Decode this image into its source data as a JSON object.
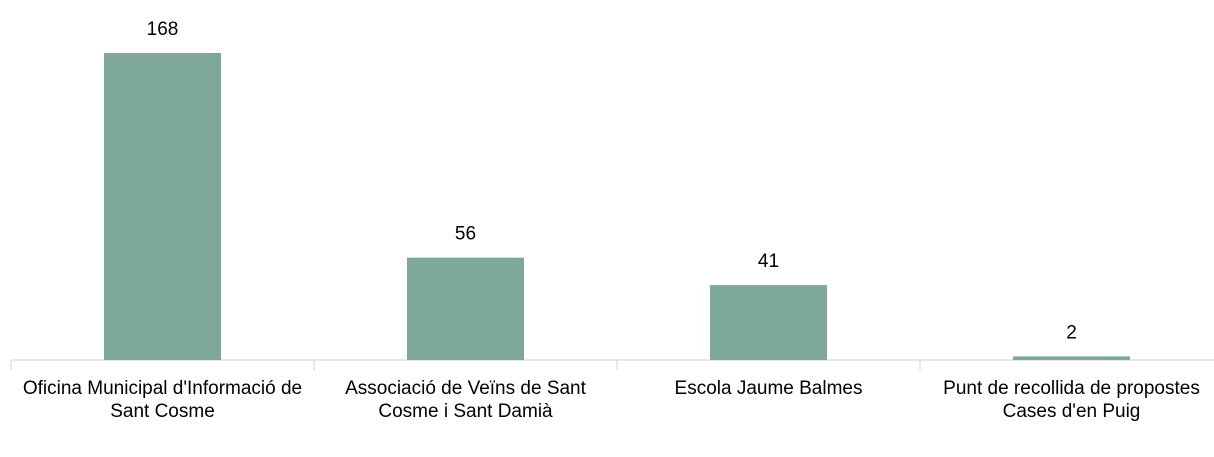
{
  "chart_data": {
    "type": "bar",
    "categories": [
      "Oficina Municipal d'Informació de Sant Cosme",
      "Associació de Veïns de Sant Cosme i Sant Damià",
      "Escola Jaume Balmes",
      "Punt de recollida de propostes Cases d'en Puig"
    ],
    "values": [
      168,
      56,
      41,
      2
    ],
    "color": "#7ea89c"
  }
}
